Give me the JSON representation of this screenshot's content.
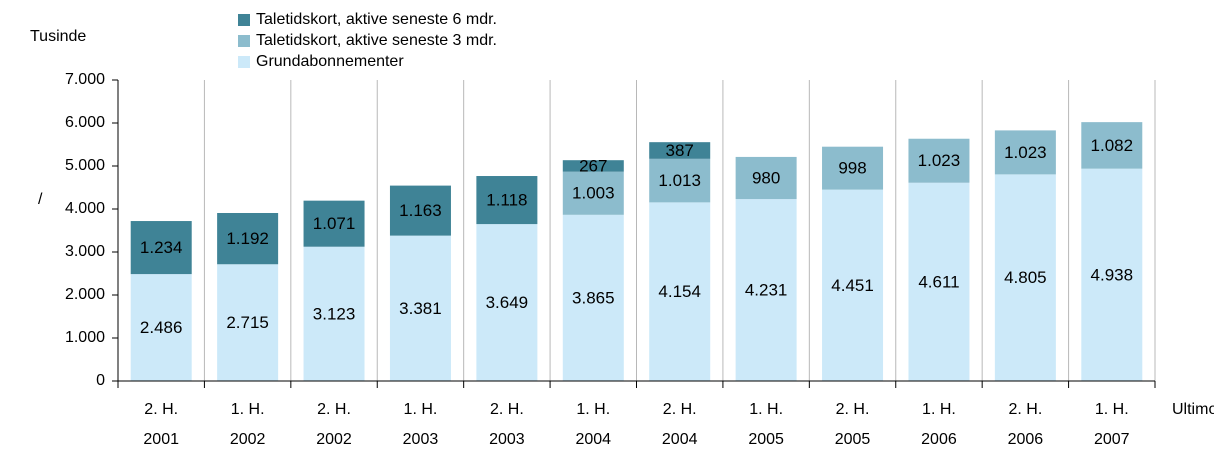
{
  "chart_data": {
    "type": "stacked_bar",
    "y_label": "Tusinde",
    "x_label": "Ultimo",
    "annotation": "/",
    "categories": [
      [
        "2. H.",
        "2001"
      ],
      [
        "1. H.",
        "2002"
      ],
      [
        "2. H.",
        "2002"
      ],
      [
        "1. H.",
        "2003"
      ],
      [
        "2. H.",
        "2003"
      ],
      [
        "1. H.",
        "2004"
      ],
      [
        "2. H.",
        "2004"
      ],
      [
        "1. H.",
        "2005"
      ],
      [
        "2. H.",
        "2005"
      ],
      [
        "1. H.",
        "2006"
      ],
      [
        "2. H.",
        "2006"
      ],
      [
        "1. H.",
        "2007"
      ]
    ],
    "series": [
      {
        "name": "Grundabonnementer",
        "color": "#cce9f9",
        "values": [
          2486,
          2715,
          3123,
          3381,
          3649,
          3865,
          4154,
          4231,
          4451,
          4611,
          4805,
          4938
        ],
        "value_labels": [
          "2.486",
          "2.715",
          "3.123",
          "3.381",
          "3.649",
          "3.865",
          "4.154",
          "4.231",
          "4.451",
          "4.611",
          "4.805",
          "4.938"
        ]
      },
      {
        "name": "Taletidskort, aktive seneste 3 mdr.",
        "color": "#8cbccd",
        "values": [
          null,
          null,
          null,
          null,
          null,
          1003,
          1013,
          980,
          998,
          1023,
          1023,
          1082
        ],
        "value_labels": [
          null,
          null,
          null,
          null,
          null,
          "1.003",
          "1.013",
          "980",
          "998",
          "1.023",
          "1.023",
          "1.082"
        ]
      },
      {
        "name": "Taletidskort, aktive seneste 6 mdr.",
        "color": "#3f8396",
        "values": [
          1234,
          1192,
          1071,
          1163,
          1118,
          267,
          387,
          null,
          null,
          null,
          null,
          null
        ],
        "value_labels": [
          "1.234",
          "1.192",
          "1.071",
          "1.163",
          "1.118",
          "267",
          "387",
          null,
          null,
          null,
          null,
          null
        ]
      }
    ],
    "ylim": [
      0,
      7000
    ],
    "yticks": [
      0,
      {
        "value": 1000,
        "label": "1.000"
      },
      {
        "value": 2000,
        "label": "2.000"
      },
      {
        "value": 3000,
        "label": "3.000"
      },
      {
        "value": 4000,
        "label": "4.000"
      },
      {
        "value": 5000,
        "label": "5.000"
      },
      {
        "value": 6000,
        "label": "6.000"
      },
      {
        "value": 7000,
        "label": "7.000"
      }
    ],
    "legend": "top-left"
  }
}
